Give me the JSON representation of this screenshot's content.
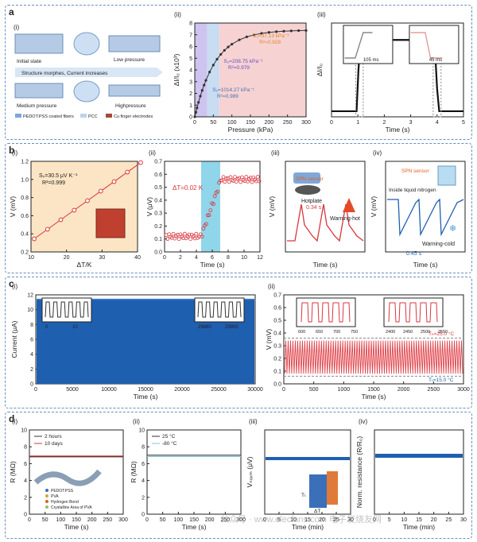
{
  "panel_a": {
    "label": "a",
    "i": {
      "tag": "(i)",
      "states": [
        "Initial state",
        "Low pressure",
        "Medium pressure",
        "Highpressure"
      ],
      "arrow_text": "Structure morphes, Current increases",
      "legend": [
        "PEDOT:PSS coated fibers",
        "PCC",
        "Cu finger electrodes"
      ]
    },
    "ii": {
      "tag": "(ii)",
      "ylabel": "ΔI/I₀ (x10³)",
      "xlabel": "Pressure (kPa)",
      "xticks": [
        "0",
        "50",
        "100",
        "150",
        "200",
        "250",
        "300"
      ],
      "yticks": [
        "0",
        "1",
        "2",
        "3",
        "4",
        "5",
        "6",
        "7",
        "8"
      ],
      "s1": "S₁=1014.27 kPa⁻¹",
      "r1": "R²=0.989",
      "s2": "S₂=208.75 kPa⁻¹",
      "r2": "R²=0.979",
      "s3": "S₃=37.13 kPa⁻¹",
      "r3": "R²=0.928"
    },
    "iii": {
      "tag": "(iii)",
      "ylabel": "ΔI/I₀",
      "xlabel": "Time (s)",
      "xticks": [
        "0",
        "1",
        "2",
        "3",
        "4",
        "5"
      ],
      "inset1": "105 ms",
      "inset2": "45 ms"
    }
  },
  "panel_b": {
    "label": "b",
    "i": {
      "tag": "(i)",
      "ylabel": "V (mV)",
      "xlabel": "ΔT/K",
      "xticks": [
        "10",
        "20",
        "30",
        "40"
      ],
      "yticks": [
        "0.2",
        "0.4",
        "0.6",
        "0.8",
        "1.0",
        "1.2"
      ],
      "s": "Sₛ=30.5 μV K⁻¹",
      "r": "R²=0.999"
    },
    "ii": {
      "tag": "(ii)",
      "ylabel": "V (μV)",
      "xlabel": "Time (s)",
      "xticks": [
        "0",
        "2",
        "4",
        "6",
        "8",
        "10",
        "12"
      ],
      "yticks": [
        "0.0",
        "0.1",
        "0.2",
        "0.3",
        "0.4",
        "0.5",
        "0.6",
        "0.7"
      ],
      "dt": "ΔT=0.02 K"
    },
    "iii": {
      "tag": "(iii)",
      "ylabel": "V (mV)",
      "xlabel": "Time (s)",
      "sensor": "SPN sensor",
      "hotplate": "Hotplate",
      "t": "0.34 s",
      "warn": "Warning-hot"
    },
    "iv": {
      "tag": "(iv)",
      "ylabel": "V (mV)",
      "xlabel": "Time (s)",
      "sensor": "SPN sensor",
      "ln2": "Inside liquid nitrogen",
      "t": "0.45 s",
      "warn": "Warning-cold"
    }
  },
  "panel_c": {
    "label": "c",
    "i": {
      "tag": "(i)",
      "ylabel": "Current (μA)",
      "xlabel": "Time (s)",
      "xticks": [
        "0",
        "5000",
        "10000",
        "15000",
        "20000",
        "25000",
        "30000"
      ],
      "yticks": [
        "0",
        "2",
        "4",
        "6",
        "8",
        "10",
        "12"
      ],
      "inset1_ticks": [
        "0",
        "10"
      ],
      "inset2_ticks": [
        "29880",
        "29900"
      ]
    },
    "ii": {
      "tag": "(ii)",
      "ylabel": "V (mV)",
      "xlabel": "Time (s)",
      "xticks": [
        "0",
        "500",
        "1000",
        "1500",
        "2000",
        "2500",
        "3000"
      ],
      "yticks": [
        "0.0",
        "0.1",
        "0.2",
        "0.3",
        "0.4",
        "0.5",
        "0.6",
        "0.7"
      ],
      "th": "Tₕ=25.0 °C",
      "tc": "Tₜ=15.0 °C",
      "inset1_ticks": [
        "600",
        "650",
        "700",
        "750"
      ],
      "inset2_ticks": [
        "2400",
        "2450",
        "2500",
        "2550"
      ]
    }
  },
  "panel_d": {
    "label": "d",
    "i": {
      "tag": "(i)",
      "ylabel": "R (MΩ)",
      "xlabel": "Time (s)",
      "legend": [
        "2 hours",
        "10 days"
      ],
      "xticks": [
        "0",
        "50",
        "100",
        "150",
        "200",
        "250",
        "300"
      ],
      "yticks": [
        "0",
        "2",
        "4",
        "6",
        "8",
        "10"
      ],
      "mol": [
        "PEDOT:PSS",
        "PVA",
        "Hydrogen Bond",
        "Crystalline Area of PVA"
      ]
    },
    "ii": {
      "tag": "(ii)",
      "ylabel": "R (MΩ)",
      "xlabel": "Time (s)",
      "legend": [
        "25 °C",
        "-80 °C"
      ],
      "xticks": [
        "0",
        "50",
        "100",
        "150",
        "200",
        "250",
        "300"
      ],
      "yticks": [
        "0",
        "2",
        "4",
        "6",
        "8",
        "10"
      ]
    },
    "iii": {
      "tag": "(iii)",
      "ylabel": "Vₙₒₓₘ (μV)",
      "xlabel": "Time (min)",
      "xticks": [
        "0",
        "5",
        "10",
        "15",
        "20",
        "25",
        "30"
      ],
      "dt": "ΔT",
      "tc": "Tₜ"
    },
    "iv": {
      "tag": "(iv)",
      "ylabel": "Norm. resistance (R/R₀)",
      "xlabel": "Time (min)",
      "xticks": [
        "0",
        "5",
        "10",
        "15",
        "20",
        "25",
        "30"
      ]
    }
  },
  "watermark": "公众号 · www.elecfans.com 电子发烧友网",
  "colors": {
    "border": "#6a8fc0",
    "accent_red": "#d9363e",
    "accent_blue": "#1f5fb0",
    "purple_band": "#cfc3ef",
    "pink_band": "#f6d2d2",
    "cyan_band": "#8fd6ea"
  }
}
